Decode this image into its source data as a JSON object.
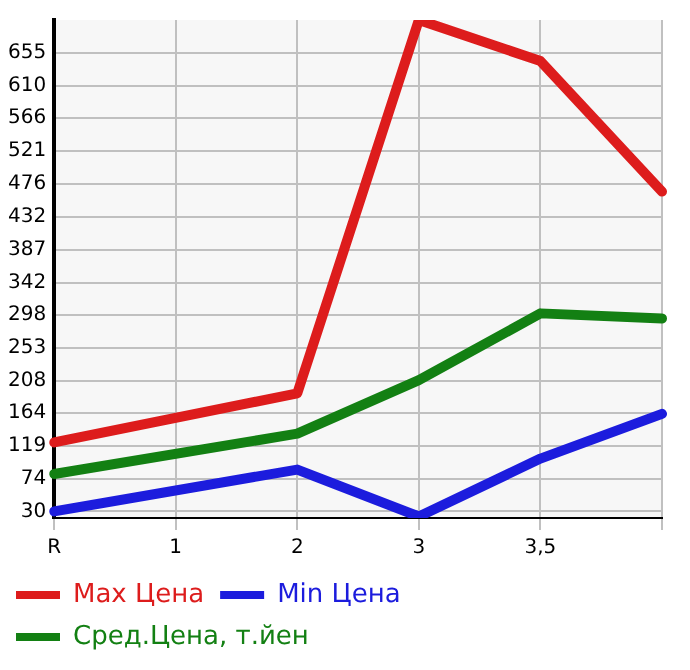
{
  "chart_data": {
    "type": "line",
    "categories": [
      "R",
      "1",
      "2",
      "3",
      "3,5",
      null
    ],
    "series": [
      {
        "name": "Max Цена",
        "color": "#dd1c1c",
        "values": [
          124,
          null,
          191,
          700,
          644,
          466
        ]
      },
      {
        "name": "Min Цена",
        "color": "#1c1cdd",
        "values": [
          30,
          null,
          87,
          23,
          102,
          163
        ]
      },
      {
        "name": "Сред.Цена, т.йен",
        "color": "#138013",
        "values": [
          81,
          null,
          136,
          209,
          300,
          293
        ]
      }
    ],
    "ylim": [
      21,
      700
    ],
    "yticks": [
      30,
      74,
      119,
      164,
      208,
      253,
      298,
      342,
      387,
      432,
      476,
      521,
      566,
      610,
      655
    ],
    "grid": true,
    "legend": "bottom left",
    "marker": "none",
    "line_style": "solid"
  }
}
